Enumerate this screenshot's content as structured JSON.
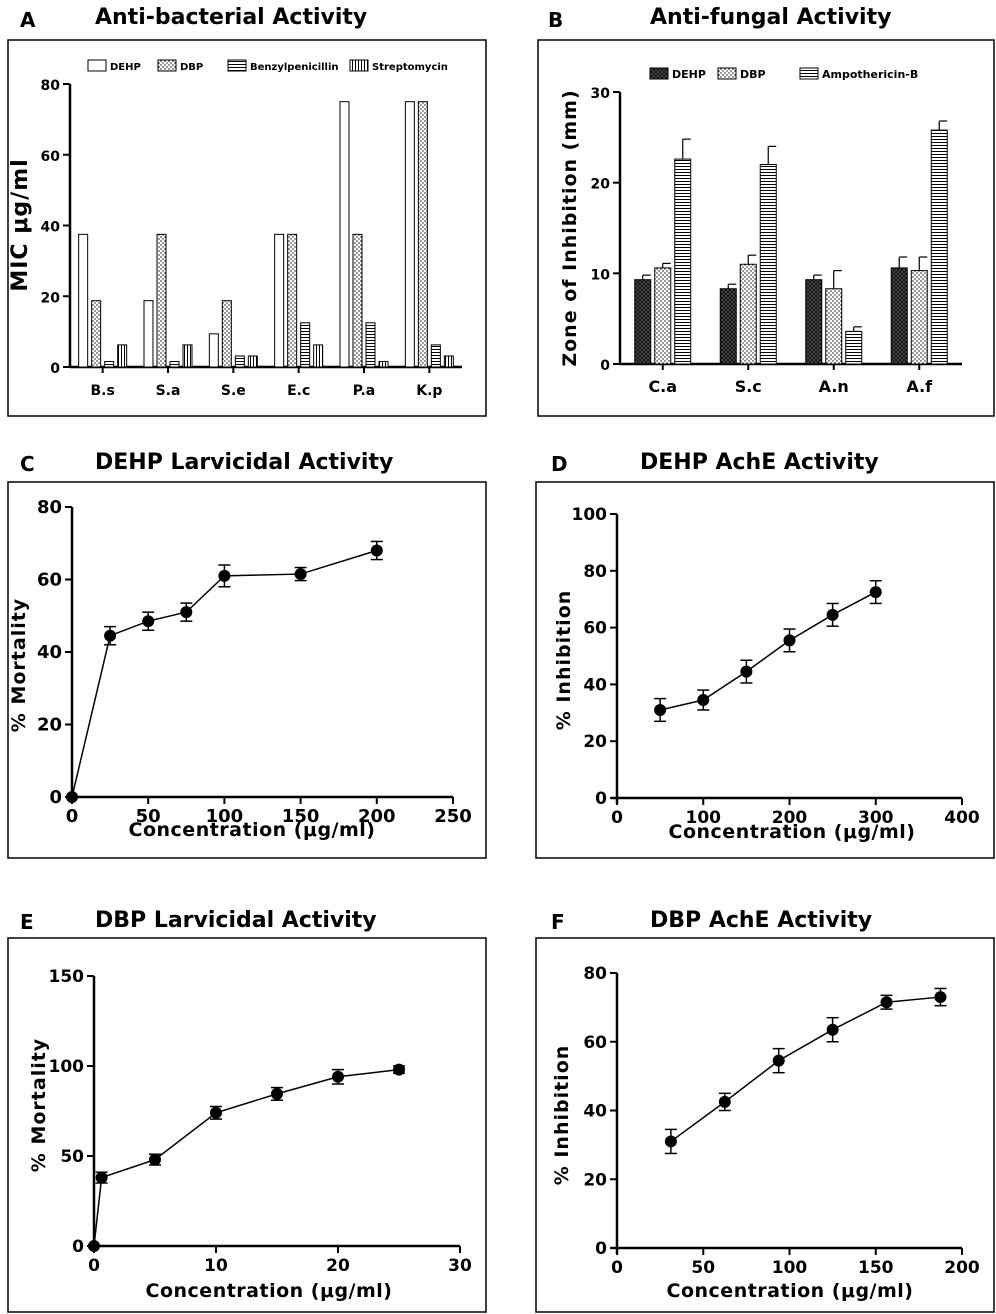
{
  "chart_data": [
    {
      "id": "A",
      "panel_label": "A",
      "type": "bar",
      "title": "Anti-bacterial Activity",
      "ylabel": "MIC μg/ml",
      "xlabel": "",
      "ylim": [
        0,
        80
      ],
      "yticks": [
        "0",
        "20",
        "40",
        "60",
        "80"
      ],
      "categories": [
        "B.s",
        "S.a",
        "S.e",
        "E.c",
        "P.a",
        "K.p"
      ],
      "series": [
        {
          "name": "DEHP",
          "pattern": "open",
          "values": [
            37.5,
            18.75,
            9.38,
            37.5,
            75,
            75
          ]
        },
        {
          "name": "DBP",
          "pattern": "dots",
          "values": [
            18.75,
            37.5,
            18.75,
            37.5,
            37.5,
            75
          ]
        },
        {
          "name": "Benzylpenicillin",
          "pattern": "hlines",
          "values": [
            1.56,
            1.56,
            3.12,
            12.5,
            12.5,
            6.25
          ]
        },
        {
          "name": "Streptomycin",
          "pattern": "vlines",
          "values": [
            6.25,
            6.25,
            3.12,
            6.25,
            1.56,
            3.12
          ]
        }
      ],
      "grid": false,
      "legend": "top"
    },
    {
      "id": "B",
      "panel_label": "B",
      "type": "bar",
      "title": "Anti-fungal Activity",
      "ylabel": "Zone of Inhibition (mm)",
      "xlabel": "",
      "ylim": [
        0,
        30
      ],
      "yticks": [
        "0",
        "10",
        "20",
        "30"
      ],
      "categories": [
        "C.a",
        "S.c",
        "A.n",
        "A.f"
      ],
      "series": [
        {
          "name": "DEHP",
          "pattern": "crosshatch",
          "values": [
            9.3,
            8.3,
            9.3,
            10.6
          ],
          "errors": [
            0.5,
            0.5,
            0.5,
            1.2
          ]
        },
        {
          "name": "DBP",
          "pattern": "dots",
          "values": [
            10.6,
            11.0,
            8.3,
            10.3
          ],
          "errors": [
            0.5,
            1.0,
            2.0,
            1.5
          ]
        },
        {
          "name": "Ampothericin-B",
          "pattern": "hlines",
          "values": [
            22.6,
            22.0,
            3.6,
            25.8
          ],
          "errors": [
            2.2,
            2.0,
            0.5,
            1.0
          ]
        }
      ],
      "grid": false,
      "legend": "top"
    },
    {
      "id": "C",
      "panel_label": "C",
      "type": "line",
      "title": "DEHP Larvicidal Activity",
      "ylabel": "% Mortality",
      "xlabel": "Concentration (μg/ml)",
      "xlim": [
        0,
        250
      ],
      "ylim": [
        0,
        80
      ],
      "xticks": [
        "0",
        "50",
        "100",
        "150",
        "200",
        "250"
      ],
      "yticks": [
        "0",
        "20",
        "40",
        "60",
        "80"
      ],
      "x": [
        0,
        25,
        50,
        75,
        100,
        150,
        200
      ],
      "y": [
        0,
        44.5,
        48.5,
        51,
        61,
        61.5,
        68
      ],
      "errors": [
        0,
        2.5,
        2.5,
        2.5,
        3,
        1.8,
        2.5
      ],
      "grid": false
    },
    {
      "id": "D",
      "panel_label": "D",
      "type": "line",
      "title": "DEHP AchE Activity",
      "ylabel": "% Inhibition",
      "xlabel": "Concentration (μg/ml)",
      "xlim": [
        0,
        400
      ],
      "ylim": [
        0,
        100
      ],
      "xticks": [
        "0",
        "100",
        "200",
        "300",
        "400"
      ],
      "yticks": [
        "0",
        "20",
        "40",
        "60",
        "80",
        "100"
      ],
      "x": [
        50,
        100,
        150,
        200,
        250,
        300
      ],
      "y": [
        31,
        34.5,
        44.5,
        55.5,
        64.5,
        72.5
      ],
      "errors": [
        4,
        3.5,
        4,
        4,
        4,
        4
      ],
      "grid": false
    },
    {
      "id": "E",
      "panel_label": "E",
      "type": "line",
      "title": "DBP Larvicidal Activity",
      "ylabel": "% Mortality",
      "xlabel": "Concentration (μg/ml)",
      "xlim": [
        0,
        30
      ],
      "ylim": [
        0,
        150
      ],
      "xticks": [
        "0",
        "10",
        "20",
        "30"
      ],
      "yticks": [
        "0",
        "50",
        "100",
        "150"
      ],
      "x": [
        0,
        0.625,
        5,
        10,
        15,
        20,
        25
      ],
      "y": [
        0,
        38,
        48,
        74,
        84.5,
        94,
        98
      ],
      "errors": [
        0,
        3,
        3,
        3.5,
        3.5,
        4,
        2
      ],
      "grid": false
    },
    {
      "id": "F",
      "panel_label": "F",
      "type": "line",
      "title": "DBP AchE Activity",
      "ylabel": "% Inhibition",
      "xlabel": "Concentration (μg/ml)",
      "xlim": [
        0,
        200
      ],
      "ylim": [
        0,
        80
      ],
      "xticks": [
        "0",
        "50",
        "100",
        "150",
        "200"
      ],
      "yticks": [
        "0",
        "20",
        "40",
        "60",
        "80"
      ],
      "x": [
        31.25,
        62.5,
        93.75,
        125,
        156.25,
        187.5
      ],
      "y": [
        31,
        42.5,
        54.5,
        63.5,
        71.5,
        73
      ],
      "errors": [
        3.5,
        2.5,
        3.5,
        3.5,
        2,
        2.5
      ],
      "grid": false
    }
  ]
}
